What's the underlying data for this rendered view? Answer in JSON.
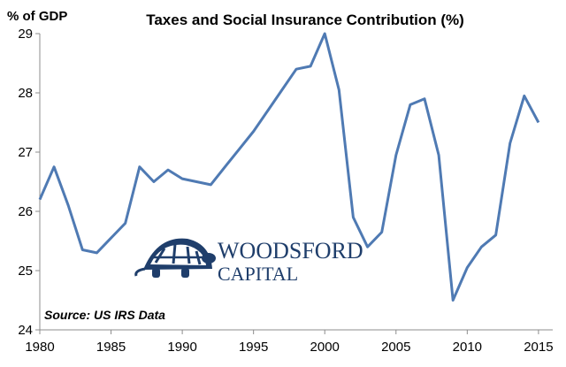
{
  "chart_data": {
    "type": "line",
    "title": "Taxes and Social Insurance Contribution (%)",
    "ylabel": "% of GDP",
    "xlabel": "",
    "xlim": [
      1980,
      2016
    ],
    "ylim": [
      24,
      29
    ],
    "x_ticks": [
      1980,
      1985,
      1990,
      1995,
      2000,
      2005,
      2010,
      2015
    ],
    "y_ticks": [
      24,
      25,
      26,
      27,
      28,
      29
    ],
    "grid": false,
    "series": [
      {
        "name": "Taxes and Social Insurance Contribution",
        "color": "#4f7ab3",
        "x": [
          1980,
          1981,
          1982,
          1983,
          1984,
          1985,
          1986,
          1987,
          1988,
          1989,
          1990,
          1991,
          1992,
          1993,
          1994,
          1995,
          1996,
          1997,
          1998,
          1999,
          2000,
          2001,
          2002,
          2003,
          2004,
          2005,
          2006,
          2007,
          2008,
          2009,
          2010,
          2011,
          2012,
          2013,
          2014,
          2015
        ],
        "values": [
          26.2,
          26.75,
          26.1,
          25.35,
          25.3,
          25.55,
          25.8,
          26.75,
          26.5,
          26.7,
          26.55,
          26.5,
          26.45,
          26.75,
          27.05,
          27.35,
          27.7,
          28.05,
          28.4,
          28.45,
          29.0,
          28.05,
          25.9,
          25.4,
          25.65,
          26.95,
          27.8,
          27.9,
          26.95,
          24.5,
          25.05,
          25.4,
          25.6,
          27.15,
          27.95,
          27.5
        ]
      }
    ],
    "source": "Source: US IRS Data"
  },
  "logo": {
    "line1": "WOODSFORD",
    "line2": "CAPITAL",
    "color": "#1f3e6b"
  },
  "colors": {
    "axis": "#8c8c8c",
    "line": "#4f7ab3"
  }
}
